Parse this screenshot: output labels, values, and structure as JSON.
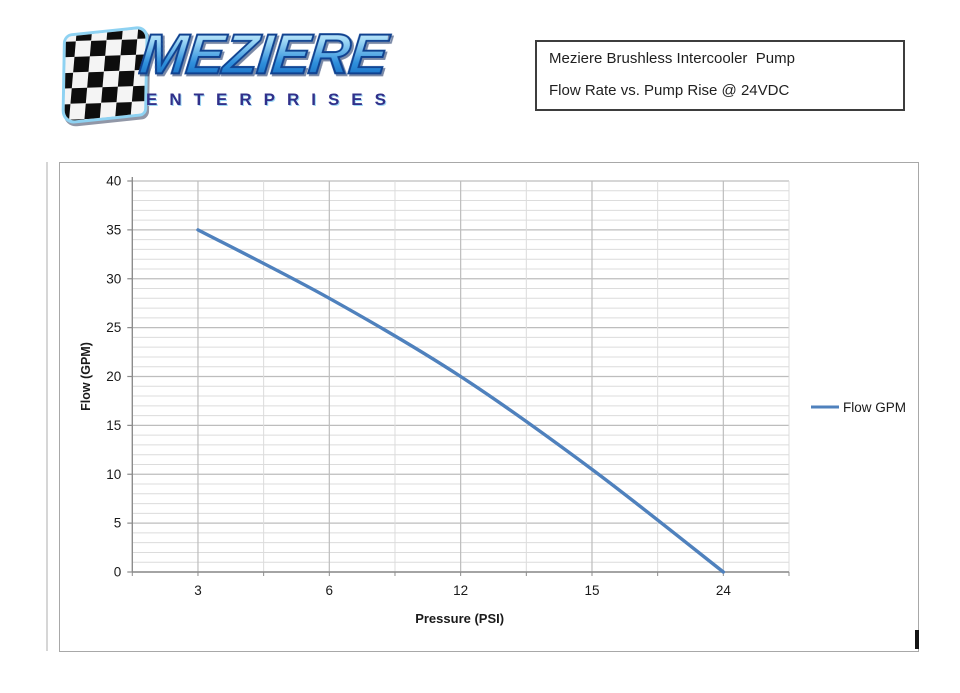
{
  "logo": {
    "brand": "MEZIERE",
    "subbrand": "ENTERPRISES",
    "flag_icon": "checkered-flag",
    "brand_color": "#1e83d8",
    "subbrand_color": "#31308a"
  },
  "title_box": {
    "line1": "Meziere Brushless Intercooler  Pump",
    "line2": "Flow Rate vs. Pump Rise @ 24VDC"
  },
  "chart_data": {
    "type": "line",
    "title": "",
    "categories": [
      "3",
      "6",
      "12",
      "15",
      "24"
    ],
    "series": [
      {
        "name": "Flow GPM",
        "values": [
          35,
          28,
          20,
          10.5,
          0
        ],
        "color": "#4f81bd"
      }
    ],
    "xlabel": "Pressure (PSI)",
    "ylabel": "Flow (GPM)",
    "ylim": [
      0,
      40
    ],
    "y_major": 5,
    "y_minor": 1,
    "grid": "on",
    "smooth": true,
    "legend_position": "right",
    "colors": {
      "line": "#4f81bd",
      "axis": "#8c8c8c",
      "grid_major": "#bdbdbd",
      "grid_minor": "#dcdcdc",
      "text": "#1a1a1a"
    }
  }
}
